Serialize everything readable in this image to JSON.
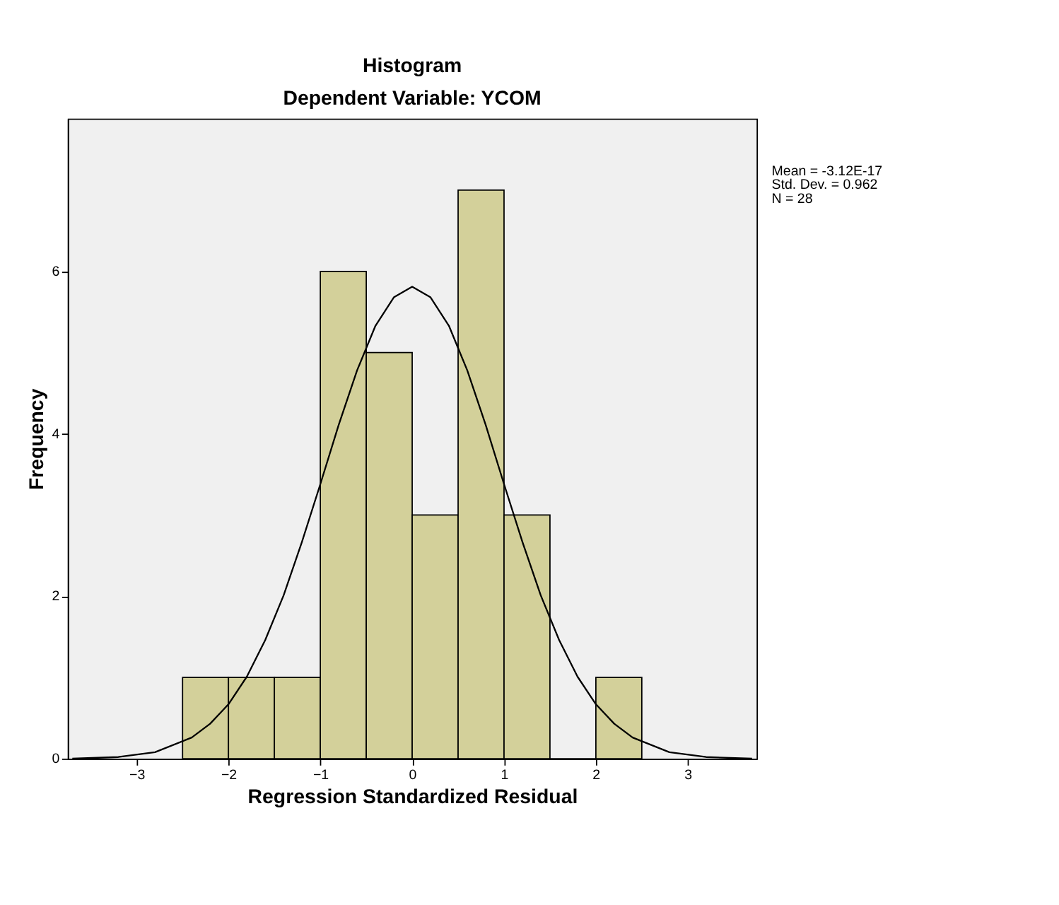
{
  "chart_data": {
    "type": "histogram",
    "title": "Histogram",
    "subtitle": "Dependent Variable: YCOM",
    "xlabel": "Regression Standardized Residual",
    "ylabel": "Frequency",
    "bins": [
      -2.5,
      -2.0,
      -1.5,
      -1.0,
      -0.5,
      0.0,
      0.5,
      1.0,
      1.5,
      2.0,
      2.5
    ],
    "values": [
      1,
      1,
      1,
      6,
      5,
      3,
      7,
      3,
      0,
      1
    ],
    "color": "#d3d09a",
    "series": [
      {
        "type": "line",
        "color": "#000000",
        "x": [
          -3.7,
          -3.2,
          -2.8,
          -2.4,
          -2.2,
          -2.0,
          -1.8,
          -1.6,
          -1.4,
          -1.2,
          -1.0,
          -0.8,
          -0.6,
          -0.4,
          -0.2,
          0.0,
          0.2,
          0.4,
          0.6,
          0.8,
          1.0,
          1.2,
          1.4,
          1.6,
          1.8,
          2.0,
          2.2,
          2.4,
          2.8,
          3.2,
          3.7
        ],
        "values": [
          0.0,
          0.02,
          0.08,
          0.26,
          0.43,
          0.67,
          1.01,
          1.46,
          2.01,
          2.67,
          3.38,
          4.11,
          4.78,
          5.33,
          5.68,
          5.81,
          5.68,
          5.33,
          4.78,
          4.11,
          3.38,
          2.67,
          2.01,
          1.46,
          1.01,
          0.67,
          0.43,
          0.26,
          0.08,
          0.02,
          0.0
        ]
      }
    ],
    "xlim": [
      -3.75,
      3.75
    ],
    "xticks": [
      -3,
      -2,
      -1,
      0,
      1,
      2,
      3
    ],
    "ylim": [
      0,
      7.88
    ],
    "yticks": [
      0,
      2,
      4,
      6
    ],
    "grid": false,
    "annotations": [
      "Mean = -3.12E-17",
      "Std. Dev. = 0.962",
      "N = 28"
    ]
  }
}
